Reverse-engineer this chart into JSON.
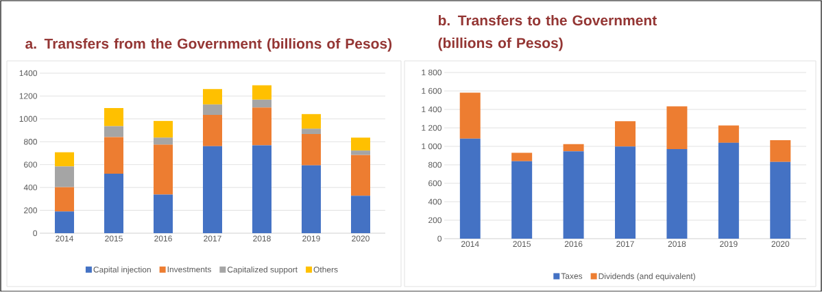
{
  "chart_data": [
    {
      "type": "bar",
      "stacked": true,
      "title": "a. Transfers from the Government (billions of Pesos)",
      "categories": [
        "2014",
        "2015",
        "2016",
        "2017",
        "2018",
        "2019",
        "2020"
      ],
      "series": [
        {
          "name": "Capital injection",
          "color": "#4472c4",
          "values": [
            190,
            520,
            338,
            761,
            768,
            593,
            327
          ]
        },
        {
          "name": "Investments",
          "color": "#ed7d31",
          "values": [
            213,
            321,
            436,
            274,
            332,
            274,
            357
          ]
        },
        {
          "name": "Capitalized support",
          "color": "#a5a5a5",
          "values": [
            181,
            95,
            62,
            91,
            68,
            47,
            39
          ]
        },
        {
          "name": "Others",
          "color": "#ffc000",
          "values": [
            124,
            159,
            146,
            135,
            126,
            128,
            113
          ]
        }
      ],
      "ylim": [
        0,
        1400
      ],
      "yticks": [
        0,
        200,
        400,
        600,
        800,
        1000,
        1200,
        1400
      ],
      "grid": "y",
      "legend": "bottom"
    },
    {
      "type": "bar",
      "stacked": true,
      "title": "b. Transfers to the Government (billions of Pesos)",
      "categories": [
        "2014",
        "2015",
        "2016",
        "2017",
        "2018",
        "2019",
        "2020"
      ],
      "series": [
        {
          "name": "Taxes",
          "color": "#4472c4",
          "values": [
            1084,
            839,
            947,
            998,
            970,
            1038,
            831
          ]
        },
        {
          "name": "Dividends (and equivalent)",
          "color": "#ed7d31",
          "values": [
            498,
            91,
            77,
            274,
            464,
            188,
            236
          ]
        }
      ],
      "ylim": [
        0,
        1800
      ],
      "yticks": [
        0,
        {
          "value": 200,
          "label": "200"
        },
        {
          "value": 400,
          "label": "400"
        },
        {
          "value": 600,
          "label": "600"
        },
        {
          "value": 800,
          "label": "800"
        },
        {
          "value": 1000,
          "label": "1 000"
        },
        {
          "value": 1200,
          "label": "1 200"
        },
        {
          "value": 1400,
          "label": "1 400"
        },
        {
          "value": 1600,
          "label": "1 600"
        },
        {
          "value": 1800,
          "label": "1 800"
        }
      ],
      "grid": "y",
      "legend": "bottom"
    }
  ]
}
